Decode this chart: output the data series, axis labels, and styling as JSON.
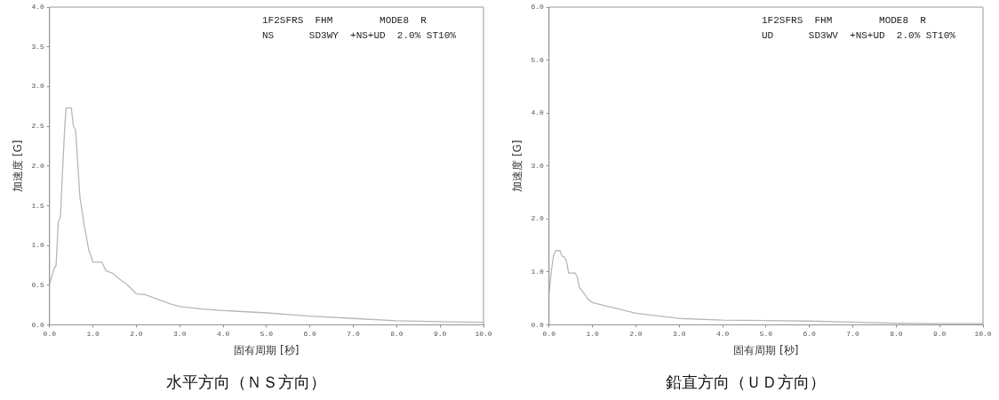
{
  "chart_data": [
    {
      "type": "line",
      "title": "水平方向（ＮＳ方向）",
      "xlabel": "固有周期 [秒]",
      "ylabel": "加速度 [G]",
      "annotations": [
        "1F2SFRS  FHM        MODE8  R",
        "NS      SD3WY  +NS+UD  2.0% ST10%"
      ],
      "xlim": [
        0,
        10
      ],
      "ylim": [
        0,
        4
      ],
      "xticks": [
        {
          "value": 0,
          "label": "0.0"
        },
        {
          "value": 1,
          "label": "1.0"
        },
        {
          "value": 2,
          "label": "2.0"
        },
        {
          "value": 3,
          "label": "3.0"
        },
        {
          "value": 4,
          "label": "4.0"
        },
        {
          "value": 5,
          "label": "5.0"
        },
        {
          "value": 6,
          "label": "6.0"
        },
        {
          "value": 7,
          "label": "7.0"
        },
        {
          "value": 8,
          "label": "8.0"
        },
        {
          "value": 9,
          "label": "9.0"
        },
        {
          "value": 10,
          "label": "10.0"
        }
      ],
      "yticks": [
        {
          "value": 0,
          "label": "0.0"
        },
        {
          "value": 0.5,
          "label": "0.5"
        },
        {
          "value": 1,
          "label": "1.0"
        },
        {
          "value": 1.5,
          "label": "1.5"
        },
        {
          "value": 2,
          "label": "2.0"
        },
        {
          "value": 2.5,
          "label": "2.5"
        },
        {
          "value": 3,
          "label": "3.0"
        },
        {
          "value": 3.5,
          "label": "3.5"
        },
        {
          "value": 4,
          "label": "4.0"
        }
      ],
      "grid": false,
      "legend": false,
      "marker": "none",
      "line_style": "solid",
      "series": [
        {
          "color": "#b8b8b8",
          "x": [
            0,
            0.1,
            0.15,
            0.2,
            0.25,
            0.3,
            0.35,
            0.38,
            0.5,
            0.55,
            0.6,
            0.7,
            0.8,
            0.9,
            1.0,
            1.2,
            1.3,
            1.45,
            1.6,
            1.8,
            2.0,
            2.2,
            2.5,
            2.8,
            3.0,
            3.5,
            4.0,
            5.0,
            6.0,
            7.0,
            8.0,
            9.0,
            10
          ],
          "values": [
            0.52,
            0.7,
            0.75,
            1.3,
            1.35,
            1.95,
            2.5,
            2.73,
            2.73,
            2.5,
            2.45,
            1.6,
            1.25,
            0.95,
            0.79,
            0.79,
            0.68,
            0.65,
            0.58,
            0.5,
            0.39,
            0.38,
            0.32,
            0.26,
            0.23,
            0.2,
            0.18,
            0.15,
            0.11,
            0.08,
            0.05,
            0.04,
            0.03
          ]
        }
      ]
    },
    {
      "type": "line",
      "title": "鉛直方向（ＵＤ方向）",
      "xlabel": "固有周期 [秒]",
      "ylabel": "加速度 [G]",
      "annotations": [
        "1F2SFRS  FHM        MODE8  R",
        "UD      SD3WV  +NS+UD  2.0% ST10%"
      ],
      "xlim": [
        0,
        10
      ],
      "ylim": [
        0,
        6
      ],
      "xticks": [
        {
          "value": 0,
          "label": "0.0"
        },
        {
          "value": 1,
          "label": "1.0"
        },
        {
          "value": 2,
          "label": "2.0"
        },
        {
          "value": 3,
          "label": "3.0"
        },
        {
          "value": 4,
          "label": "4.0"
        },
        {
          "value": 5,
          "label": "5.0"
        },
        {
          "value": 6,
          "label": "6.0"
        },
        {
          "value": 7,
          "label": "7.0"
        },
        {
          "value": 8,
          "label": "8.0"
        },
        {
          "value": 9,
          "label": "9.0"
        },
        {
          "value": 10,
          "label": "10.0"
        }
      ],
      "yticks": [
        {
          "value": 0,
          "label": "0.0"
        },
        {
          "value": 1,
          "label": "1.0"
        },
        {
          "value": 2,
          "label": "2.0"
        },
        {
          "value": 3,
          "label": "3.0"
        },
        {
          "value": 4,
          "label": "4.0"
        },
        {
          "value": 5,
          "label": "5.0"
        },
        {
          "value": 6,
          "label": "6.0"
        }
      ],
      "grid": false,
      "legend": false,
      "marker": "none",
      "line_style": "solid",
      "series": [
        {
          "color": "#b8b8b8",
          "x": [
            0,
            0.05,
            0.1,
            0.15,
            0.25,
            0.3,
            0.35,
            0.4,
            0.45,
            0.6,
            0.65,
            0.7,
            0.8,
            0.9,
            1.0,
            1.2,
            1.5,
            2.0,
            2.5,
            3.0,
            4.0,
            5.0,
            6.0,
            7.0,
            8.0,
            9.0,
            10
          ],
          "values": [
            0.6,
            1.0,
            1.3,
            1.4,
            1.4,
            1.3,
            1.28,
            1.2,
            0.98,
            0.98,
            0.9,
            0.7,
            0.6,
            0.48,
            0.42,
            0.38,
            0.32,
            0.22,
            0.17,
            0.12,
            0.09,
            0.08,
            0.07,
            0.05,
            0.03,
            0.02,
            0.02
          ]
        }
      ]
    }
  ]
}
